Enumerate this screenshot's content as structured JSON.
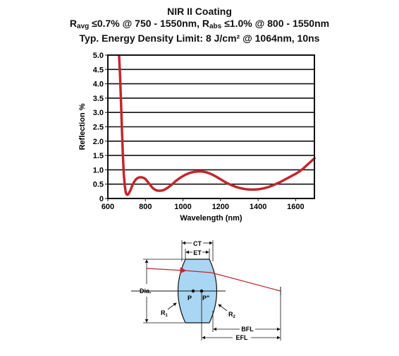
{
  "header": {
    "line1": "NIR II Coating",
    "line2_r": "R",
    "line2_avg_sub": "avg",
    "line2_mid": " ≤0.7% @ 750 - 1550nm, R",
    "line2_abs_sub": "abs",
    "line2_end": " ≤1.0% @ 800 - 1550nm",
    "line3": "Typ. Energy Density Limit: 8 J/cm² @ 1064nm, 10ns"
  },
  "chart_data": {
    "type": "line",
    "title": "NIR II Coating",
    "xlabel": "Wavelength (nm)",
    "ylabel": "Reflection %",
    "xlim": [
      600,
      1700
    ],
    "ylim": [
      0,
      5.0
    ],
    "xticks": [
      600,
      800,
      1000,
      1200,
      1400,
      1600
    ],
    "yticks": [
      "0",
      "0.5",
      "1.0",
      "1.5",
      "2.0",
      "2.5",
      "3.0",
      "3.5",
      "4.0",
      "4.5",
      "5.0"
    ],
    "grid": "horizontal",
    "series": [
      {
        "name": "",
        "color": "#c1272d",
        "x": [
          660,
          665,
          670,
          675,
          680,
          685,
          690,
          695,
          700,
          705,
          710,
          720,
          730,
          740,
          750,
          760,
          770,
          780,
          790,
          800,
          810,
          820,
          830,
          840,
          850,
          860,
          870,
          880,
          890,
          900,
          920,
          940,
          960,
          980,
          1000,
          1020,
          1040,
          1060,
          1080,
          1100,
          1120,
          1140,
          1160,
          1180,
          1200,
          1220,
          1240,
          1260,
          1280,
          1300,
          1320,
          1340,
          1360,
          1380,
          1400,
          1420,
          1440,
          1460,
          1480,
          1500,
          1520,
          1540,
          1560,
          1580,
          1600,
          1620,
          1640,
          1660,
          1680,
          1700
        ],
        "y": [
          4.95,
          4.3,
          3.4,
          2.4,
          1.5,
          0.85,
          0.45,
          0.22,
          0.14,
          0.13,
          0.16,
          0.28,
          0.45,
          0.58,
          0.67,
          0.72,
          0.74,
          0.74,
          0.72,
          0.68,
          0.6,
          0.52,
          0.43,
          0.36,
          0.31,
          0.28,
          0.27,
          0.27,
          0.28,
          0.3,
          0.38,
          0.48,
          0.6,
          0.7,
          0.78,
          0.85,
          0.9,
          0.93,
          0.94,
          0.94,
          0.92,
          0.88,
          0.82,
          0.75,
          0.67,
          0.59,
          0.52,
          0.46,
          0.41,
          0.37,
          0.34,
          0.32,
          0.31,
          0.31,
          0.32,
          0.34,
          0.37,
          0.41,
          0.46,
          0.52,
          0.58,
          0.65,
          0.72,
          0.79,
          0.86,
          0.94,
          1.04,
          1.16,
          1.28,
          1.4
        ]
      }
    ]
  },
  "lens_diagram": {
    "labels": {
      "ct": "CT",
      "et": "ET",
      "dia": "Dia.",
      "p": "P",
      "p_prime": "P\"",
      "r1_main": "R",
      "r1_sub": "1",
      "r2_main": "R",
      "r2_sub": "2",
      "bfl": "BFL",
      "efl": "EFL"
    },
    "lens_color": "#a9d6f2",
    "ray_color": "#c1272d"
  }
}
